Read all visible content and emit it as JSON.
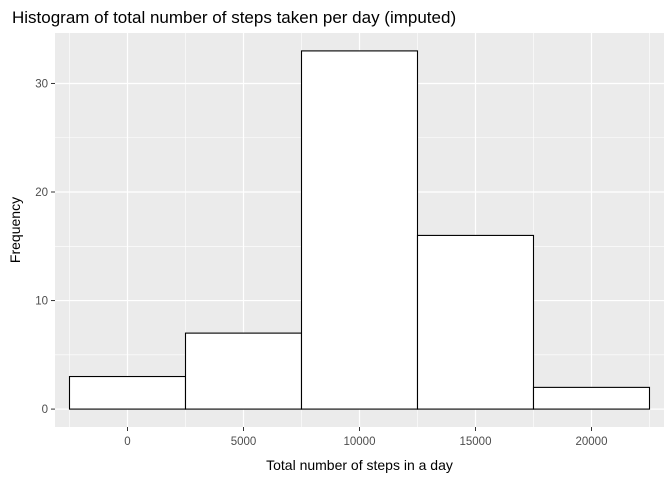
{
  "chart_data": {
    "type": "bar",
    "title": "Histogram of total number of steps taken per day (imputed)",
    "xlabel": "Total number of steps in a day",
    "ylabel": "Frequency",
    "bins": [
      {
        "start": -2500,
        "end": 2500,
        "count": 3
      },
      {
        "start": 2500,
        "end": 7500,
        "count": 7
      },
      {
        "start": 7500,
        "end": 12500,
        "count": 33
      },
      {
        "start": 12500,
        "end": 17500,
        "count": 16
      },
      {
        "start": 17500,
        "end": 22500,
        "count": 2
      }
    ],
    "xlim": [
      -3125,
      23125
    ],
    "ylim": [
      -1.65,
      34.65
    ],
    "x_ticks": [
      0,
      5000,
      10000,
      15000,
      20000
    ],
    "x_tick_labels": [
      "0",
      "5000",
      "10000",
      "15000",
      "20000"
    ],
    "y_ticks": [
      0,
      10,
      20,
      30
    ],
    "y_tick_labels": [
      "0",
      "10",
      "20",
      "30"
    ],
    "grid": true,
    "colors": {
      "panel_background": "#ebebeb",
      "grid_major": "#ffffff",
      "bar_fill": "#ffffff",
      "bar_outline": "#000000",
      "tick_label": "#4d4d4d",
      "tick_mark": "#333333"
    }
  }
}
